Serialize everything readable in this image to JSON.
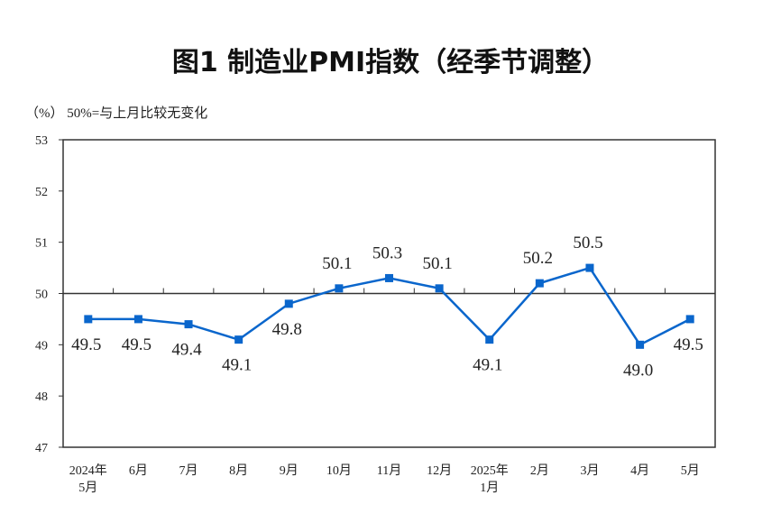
{
  "chart_data": {
    "type": "line",
    "title": "图1  制造业PMI指数（经季节调整）",
    "subtitle": "（%）  50%=与上月比较无变化",
    "categories": [
      [
        "2024年",
        "5月"
      ],
      [
        "6月"
      ],
      [
        "7月"
      ],
      [
        "8月"
      ],
      [
        "9月"
      ],
      [
        "10月"
      ],
      [
        "11月"
      ],
      [
        "12月"
      ],
      [
        "2025年",
        "1月"
      ],
      [
        "2月"
      ],
      [
        "3月"
      ],
      [
        "4月"
      ],
      [
        "5月"
      ]
    ],
    "values": [
      49.5,
      49.5,
      49.4,
      49.1,
      49.8,
      50.1,
      50.3,
      50.1,
      49.1,
      50.2,
      50.5,
      49.0,
      49.5
    ],
    "data_labels": [
      "49.5",
      "49.5",
      "49.4",
      "49.1",
      "49.8",
      "50.1",
      "50.3",
      "50.1",
      "49.1",
      "50.2",
      "50.5",
      "49.0",
      "49.5"
    ],
    "yticks": [
      "47",
      "48",
      "49",
      "50",
      "51",
      "52",
      "53"
    ],
    "ylim": [
      47,
      53
    ],
    "reference_line": 50,
    "grid": false,
    "line_color": "#0a66cc",
    "marker": "square"
  }
}
